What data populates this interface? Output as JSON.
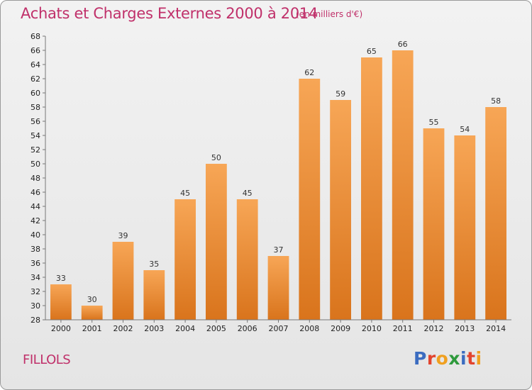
{
  "header": {
    "title": "Achats et Charges Externes 2000 à 2014",
    "unit": "(en milliers d'€)"
  },
  "footer": {
    "commune": "FILLOLS",
    "logo": [
      "P",
      "r",
      "o",
      "x",
      "i",
      "t",
      "i"
    ]
  },
  "colors": {
    "title": "#c0306a",
    "bar_top": "#f7a656",
    "bar_bottom": "#d9741c",
    "logo": [
      "#3b6cc0",
      "#e2442e",
      "#f0a020",
      "#2e9a3c",
      "#3b6cc0",
      "#e2442e",
      "#f0a020"
    ]
  },
  "chart_data": {
    "type": "bar",
    "title": "Achats et Charges Externes 2000 à 2014",
    "subtitle": "(en milliers d'€)",
    "categories": [
      "2000",
      "2001",
      "2002",
      "2003",
      "2004",
      "2005",
      "2006",
      "2007",
      "2008",
      "2009",
      "2010",
      "2011",
      "2012",
      "2013",
      "2014"
    ],
    "values": [
      33,
      30,
      39,
      35,
      45,
      50,
      45,
      37,
      62,
      59,
      65,
      66,
      55,
      54,
      58
    ],
    "xlabel": "",
    "ylabel": "",
    "ylim": [
      28,
      68
    ],
    "yticks": [
      28,
      30,
      32,
      34,
      36,
      38,
      40,
      42,
      44,
      46,
      48,
      50,
      52,
      54,
      56,
      58,
      60,
      62,
      64,
      66,
      68
    ],
    "grid": false,
    "data_labels": true
  }
}
